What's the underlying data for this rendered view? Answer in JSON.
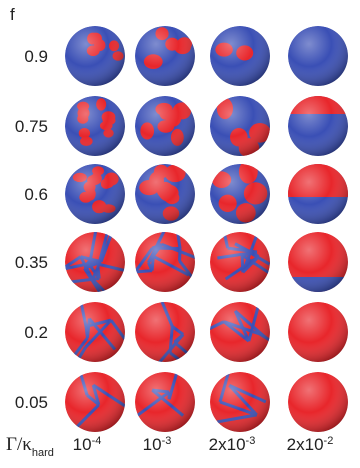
{
  "header": {
    "label": "f"
  },
  "rows": [
    {
      "label": "0.9"
    },
    {
      "label": "0.75"
    },
    {
      "label": "0.6"
    },
    {
      "label": "0.35"
    },
    {
      "label": "0.2"
    },
    {
      "label": "0.05"
    }
  ],
  "columns": {
    "title": {
      "main": "Γ/κ",
      "sub": "hard"
    },
    "values": [
      {
        "base": "10",
        "exp": "-4"
      },
      {
        "base": "10",
        "exp": "-3"
      },
      {
        "base": "2x10",
        "exp": "-3"
      },
      {
        "base": "2x10",
        "exp": "-2"
      }
    ]
  }
}
